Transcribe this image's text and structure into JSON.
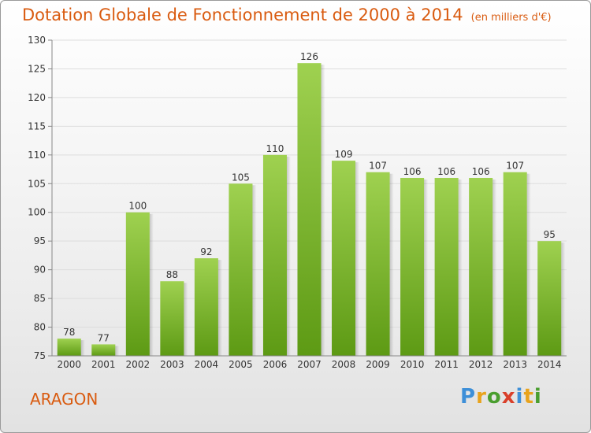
{
  "title": "Dotation Globale de Fonctionnement de 2000 à 2014",
  "unit_note": "(en milliers d'€)",
  "town": "ARAGON",
  "logo": {
    "letters": [
      "P",
      "r",
      "o",
      "x",
      "i",
      "t",
      "i"
    ],
    "colors": [
      "#3d8fd8",
      "#e8a31c",
      "#4a9e2f",
      "#d9402b",
      "#3d8fd8",
      "#e8a31c",
      "#4a9e2f"
    ]
  },
  "colors": {
    "bar_top": "#9fd150",
    "bar_bottom": "#5d9a14",
    "title": "#d95b10"
  },
  "chart_data": {
    "type": "bar",
    "categories": [
      "2000",
      "2001",
      "2002",
      "2003",
      "2004",
      "2005",
      "2006",
      "2007",
      "2008",
      "2009",
      "2010",
      "2011",
      "2012",
      "2013",
      "2014"
    ],
    "values": [
      78,
      77,
      100,
      88,
      92,
      105,
      110,
      126,
      109,
      107,
      106,
      106,
      106,
      107,
      95
    ],
    "ylim": [
      75,
      130
    ],
    "yticks": [
      75,
      80,
      85,
      90,
      95,
      100,
      105,
      110,
      115,
      120,
      125,
      130
    ],
    "grid": true,
    "xlabel": "",
    "ylabel": ""
  }
}
